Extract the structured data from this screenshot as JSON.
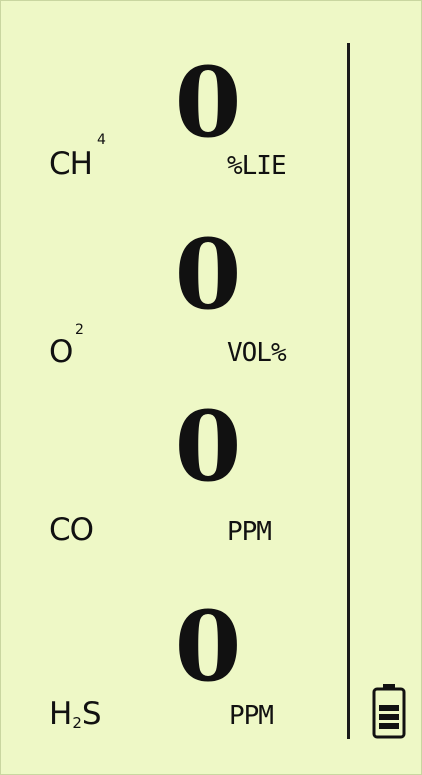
{
  "channels": [
    {
      "gas": "CH",
      "gas_sup": "4",
      "reading": "0",
      "unit": "%LIE"
    },
    {
      "gas": "O",
      "gas_sup": "2",
      "reading": "0",
      "unit": "VOL%"
    },
    {
      "gas": "CO",
      "reading": "0",
      "unit": "PPM"
    },
    {
      "gas_pre": "H",
      "gas_sub": "2",
      "gas_post": "S",
      "reading": "0",
      "unit": "PPM"
    }
  ],
  "battery": {
    "icon": "battery-icon",
    "level": 1.0
  },
  "colors": {
    "background": "#eef8c6",
    "foreground": "#111111"
  }
}
